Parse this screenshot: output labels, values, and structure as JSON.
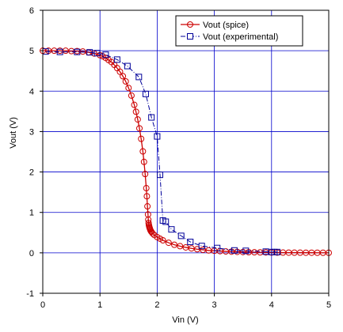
{
  "chart_data": {
    "type": "line",
    "xlabel": "Vin (V)",
    "ylabel": "Vout (V)",
    "xlim": [
      0,
      5
    ],
    "ylim": [
      -1,
      6
    ],
    "xticks": [
      0,
      1,
      2,
      3,
      4,
      5
    ],
    "yticks": [
      -1,
      0,
      1,
      2,
      3,
      4,
      5,
      6
    ],
    "grid": true,
    "legend_position": "top-right",
    "series": [
      {
        "name": "Vout (spice)",
        "color": "#cc0000",
        "marker": "circle",
        "line_style": "solid",
        "x": [
          0.0,
          0.1,
          0.2,
          0.3,
          0.4,
          0.5,
          0.6,
          0.7,
          0.8,
          0.9,
          1.0,
          1.05,
          1.1,
          1.15,
          1.2,
          1.25,
          1.3,
          1.35,
          1.4,
          1.45,
          1.5,
          1.55,
          1.6,
          1.63,
          1.66,
          1.69,
          1.72,
          1.75,
          1.77,
          1.79,
          1.81,
          1.82,
          1.83,
          1.84,
          1.845,
          1.85,
          1.855,
          1.86,
          1.865,
          1.87,
          1.875,
          1.88,
          1.89,
          1.9,
          1.92,
          1.95,
          2.0,
          2.05,
          2.1,
          2.2,
          2.3,
          2.4,
          2.5,
          2.6,
          2.7,
          2.8,
          2.9,
          3.0,
          3.1,
          3.2,
          3.3,
          3.4,
          3.5,
          3.6,
          3.7,
          3.8,
          3.9,
          4.0,
          4.1,
          4.2,
          4.3,
          4.4,
          4.5,
          4.6,
          4.7,
          4.8,
          4.9,
          5.0
        ],
        "y": [
          5.0,
          5.0,
          5.0,
          5.0,
          5.0,
          4.99,
          4.99,
          4.98,
          4.96,
          4.93,
          4.89,
          4.86,
          4.82,
          4.77,
          4.72,
          4.65,
          4.57,
          4.48,
          4.37,
          4.24,
          4.08,
          3.89,
          3.66,
          3.49,
          3.3,
          3.08,
          2.82,
          2.51,
          2.25,
          1.95,
          1.6,
          1.4,
          1.15,
          0.95,
          0.82,
          0.74,
          0.69,
          0.66,
          0.63,
          0.61,
          0.59,
          0.57,
          0.54,
          0.52,
          0.48,
          0.44,
          0.39,
          0.35,
          0.31,
          0.25,
          0.2,
          0.165,
          0.135,
          0.11,
          0.09,
          0.075,
          0.06,
          0.05,
          0.042,
          0.035,
          0.03,
          0.025,
          0.02,
          0.017,
          0.014,
          0.012,
          0.01,
          0.008,
          0.007,
          0.006,
          0.005,
          0.004,
          0.004,
          0.003,
          0.003,
          0.002,
          0.002,
          0.002
        ]
      },
      {
        "name": "Vout (experimental)",
        "color": "#000099",
        "marker": "square",
        "line_style": "dashdot",
        "x": [
          0.05,
          0.3,
          0.6,
          0.82,
          0.95,
          1.1,
          1.3,
          1.48,
          1.68,
          1.8,
          1.9,
          2.0,
          2.05,
          2.1,
          2.15,
          2.25,
          2.42,
          2.58,
          2.78,
          3.05,
          3.35,
          3.55,
          3.9,
          4.0,
          4.05,
          4.1
        ],
        "y": [
          4.98,
          4.97,
          4.97,
          4.96,
          4.94,
          4.9,
          4.78,
          4.62,
          4.35,
          3.93,
          3.35,
          2.88,
          1.93,
          0.8,
          0.77,
          0.58,
          0.42,
          0.27,
          0.17,
          0.12,
          0.06,
          0.05,
          0.03,
          0.02,
          0.02,
          0.02
        ]
      }
    ]
  }
}
